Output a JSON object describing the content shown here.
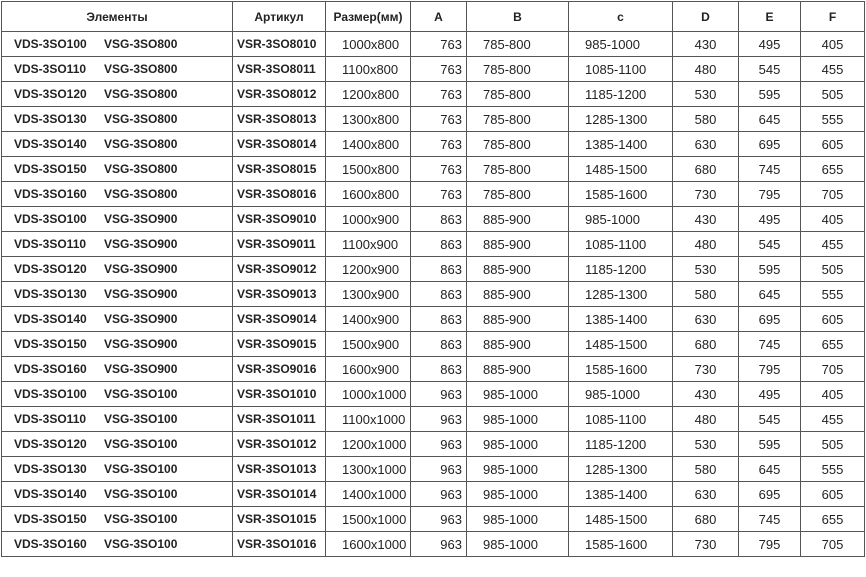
{
  "headers": {
    "elements": "Элементы",
    "article": "Артикул",
    "size": "Размер(мм)",
    "a": "A",
    "b": "B",
    "c": "c",
    "d": "D",
    "e": "E",
    "f": "F"
  },
  "rows": [
    {
      "el1": "VDS-3SO100",
      "el2": "VSG-3SO800",
      "article": "VSR-3SO8010",
      "size": "1000x800",
      "a": "763",
      "b": "785-800",
      "c": "985-1000",
      "d": "430",
      "e": "495",
      "f": "405"
    },
    {
      "el1": "VDS-3SO110",
      "el2": "VSG-3SO800",
      "article": "VSR-3SO8011",
      "size": "1100x800",
      "a": "763",
      "b": "785-800",
      "c": "1085-1100",
      "d": "480",
      "e": "545",
      "f": "455"
    },
    {
      "el1": "VDS-3SO120",
      "el2": "VSG-3SO800",
      "article": "VSR-3SO8012",
      "size": "1200x800",
      "a": "763",
      "b": "785-800",
      "c": "1185-1200",
      "d": "530",
      "e": "595",
      "f": "505"
    },
    {
      "el1": "VDS-3SO130",
      "el2": "VSG-3SO800",
      "article": "VSR-3SO8013",
      "size": "1300x800",
      "a": "763",
      "b": "785-800",
      "c": "1285-1300",
      "d": "580",
      "e": "645",
      "f": "555"
    },
    {
      "el1": "VDS-3SO140",
      "el2": "VSG-3SO800",
      "article": "VSR-3SO8014",
      "size": "1400x800",
      "a": "763",
      "b": "785-800",
      "c": "1385-1400",
      "d": "630",
      "e": "695",
      "f": "605"
    },
    {
      "el1": "VDS-3SO150",
      "el2": "VSG-3SO800",
      "article": "VSR-3SO8015",
      "size": "1500x800",
      "a": "763",
      "b": "785-800",
      "c": "1485-1500",
      "d": "680",
      "e": "745",
      "f": "655"
    },
    {
      "el1": "VDS-3SO160",
      "el2": "VSG-3SO800",
      "article": "VSR-3SO8016",
      "size": "1600x800",
      "a": "763",
      "b": "785-800",
      "c": "1585-1600",
      "d": "730",
      "e": "795",
      "f": "705"
    },
    {
      "el1": "VDS-3SO100",
      "el2": "VSG-3SO900",
      "article": "VSR-3SO9010",
      "size": "1000x900",
      "a": "863",
      "b": "885-900",
      "c": "985-1000",
      "d": "430",
      "e": "495",
      "f": "405"
    },
    {
      "el1": "VDS-3SO110",
      "el2": "VSG-3SO900",
      "article": "VSR-3SO9011",
      "size": "1100x900",
      "a": "863",
      "b": "885-900",
      "c": "1085-1100",
      "d": "480",
      "e": "545",
      "f": "455"
    },
    {
      "el1": "VDS-3SO120",
      "el2": "VSG-3SO900",
      "article": "VSR-3SO9012",
      "size": "1200x900",
      "a": "863",
      "b": "885-900",
      "c": "1185-1200",
      "d": "530",
      "e": "595",
      "f": "505"
    },
    {
      "el1": "VDS-3SO130",
      "el2": "VSG-3SO900",
      "article": "VSR-3SO9013",
      "size": "1300x900",
      "a": "863",
      "b": "885-900",
      "c": "1285-1300",
      "d": "580",
      "e": "645",
      "f": "555"
    },
    {
      "el1": "VDS-3SO140",
      "el2": "VSG-3SO900",
      "article": "VSR-3SO9014",
      "size": "1400x900",
      "a": "863",
      "b": "885-900",
      "c": "1385-1400",
      "d": "630",
      "e": "695",
      "f": "605"
    },
    {
      "el1": "VDS-3SO150",
      "el2": "VSG-3SO900",
      "article": "VSR-3SO9015",
      "size": "1500x900",
      "a": "863",
      "b": "885-900",
      "c": "1485-1500",
      "d": "680",
      "e": "745",
      "f": "655"
    },
    {
      "el1": "VDS-3SO160",
      "el2": "VSG-3SO900",
      "article": "VSR-3SO9016",
      "size": "1600x900",
      "a": "863",
      "b": "885-900",
      "c": "1585-1600",
      "d": "730",
      "e": "795",
      "f": "705"
    },
    {
      "el1": "VDS-3SO100",
      "el2": "VSG-3SO100",
      "article": "VSR-3SO1010",
      "size": "1000x1000",
      "a": "963",
      "b": "985-1000",
      "c": "985-1000",
      "d": "430",
      "e": "495",
      "f": "405"
    },
    {
      "el1": "VDS-3SO110",
      "el2": "VSG-3SO100",
      "article": "VSR-3SO1011",
      "size": "1100x1000",
      "a": "963",
      "b": "985-1000",
      "c": "1085-1100",
      "d": "480",
      "e": "545",
      "f": "455"
    },
    {
      "el1": "VDS-3SO120",
      "el2": "VSG-3SO100",
      "article": "VSR-3SO1012",
      "size": "1200x1000",
      "a": "963",
      "b": "985-1000",
      "c": "1185-1200",
      "d": "530",
      "e": "595",
      "f": "505"
    },
    {
      "el1": "VDS-3SO130",
      "el2": "VSG-3SO100",
      "article": "VSR-3SO1013",
      "size": "1300x1000",
      "a": "963",
      "b": "985-1000",
      "c": "1285-1300",
      "d": "580",
      "e": "645",
      "f": "555"
    },
    {
      "el1": "VDS-3SO140",
      "el2": "VSG-3SO100",
      "article": "VSR-3SO1014",
      "size": "1400x1000",
      "a": "963",
      "b": "985-1000",
      "c": "1385-1400",
      "d": "630",
      "e": "695",
      "f": "605"
    },
    {
      "el1": "VDS-3SO150",
      "el2": "VSG-3SO100",
      "article": "VSR-3SO1015",
      "size": "1500x1000",
      "a": "963",
      "b": "985-1000",
      "c": "1485-1500",
      "d": "680",
      "e": "745",
      "f": "655"
    },
    {
      "el1": "VDS-3SO160",
      "el2": "VSG-3SO100",
      "article": "VSR-3SO1016",
      "size": "1600x1000",
      "a": "963",
      "b": "985-1000",
      "c": "1585-1600",
      "d": "730",
      "e": "795",
      "f": "705"
    }
  ]
}
